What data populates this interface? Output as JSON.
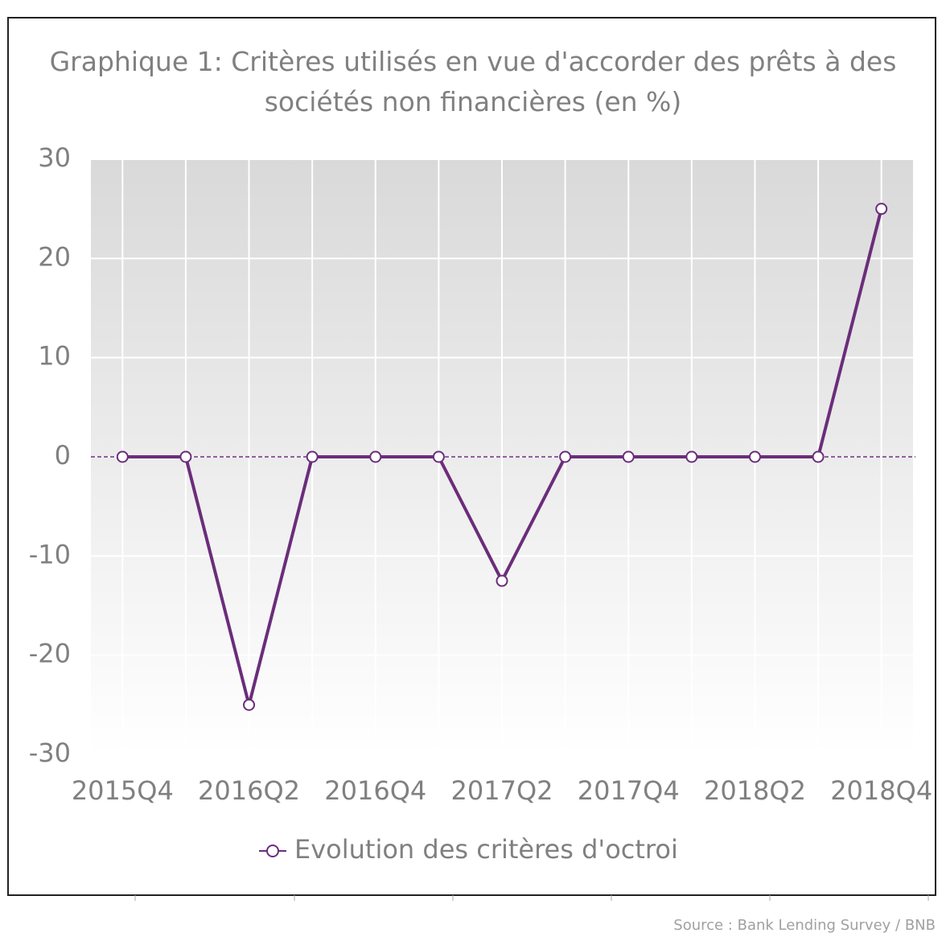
{
  "chart_data": {
    "type": "line",
    "title": "Graphique 1: Critères utilisés en vue d'accorder des prêts à des sociétés non financières (en %)",
    "categories": [
      "2015Q4",
      null,
      "2016Q2",
      null,
      "2016Q4",
      null,
      "2017Q2",
      null,
      "2017Q4",
      null,
      "2018Q2",
      null,
      "2018Q4"
    ],
    "series": [
      {
        "name": "Evolution des critères d'octroi",
        "color": "#6b2d7b",
        "values": [
          0,
          0,
          -25,
          0,
          0,
          0,
          -12.5,
          0,
          0,
          0,
          0,
          0,
          25
        ]
      }
    ],
    "ylim": [
      -30,
      30
    ],
    "yticks": [
      -30,
      -20,
      -10,
      0,
      10,
      20,
      30
    ],
    "grid": true,
    "source": "Source : Bank Lending Survey / BNB"
  }
}
